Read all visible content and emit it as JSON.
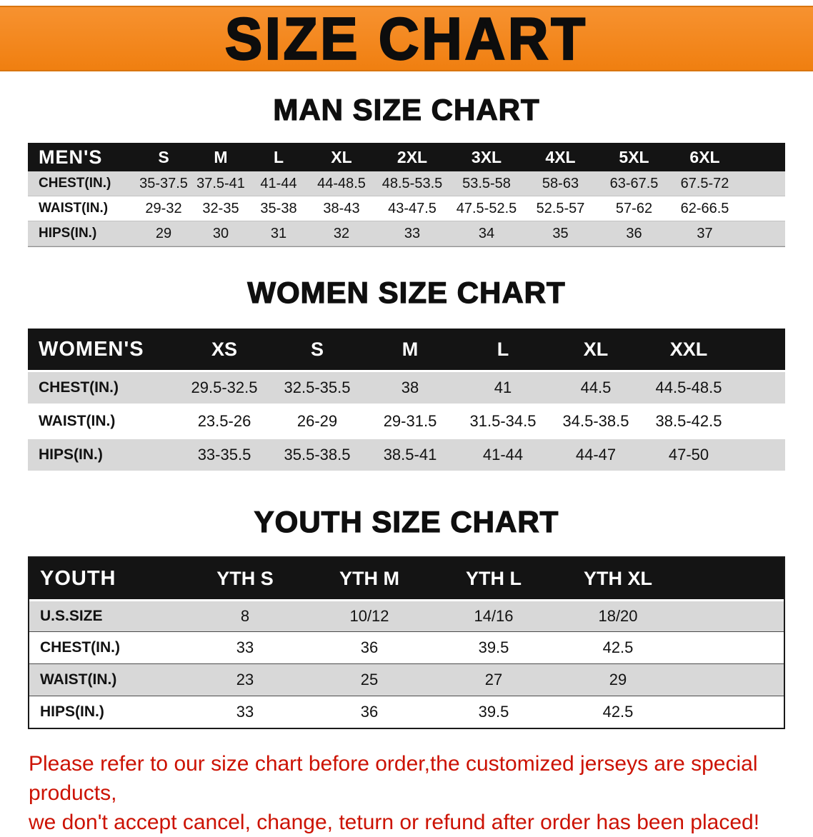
{
  "banner": {
    "title": "SIZE CHART"
  },
  "colors": {
    "banner_bg": "#f6871c",
    "table_header_bg": "#141414",
    "row_gray": "#d8d8d8",
    "note_red": "#cc1203"
  },
  "sections": [
    {
      "heading": "MAN SIZE CHART",
      "table": {
        "header": [
          "MEN'S",
          "S",
          "M",
          "L",
          "XL",
          "2XL",
          "3XL",
          "4XL",
          "5XL",
          "6XL"
        ],
        "rows": [
          {
            "label": "CHEST(IN.)",
            "values": [
              "35-37.5",
              "37.5-41",
              "41-44",
              "44-48.5",
              "48.5-53.5",
              "53.5-58",
              "58-63",
              "63-67.5",
              "67.5-72"
            ]
          },
          {
            "label": "WAIST(IN.)",
            "values": [
              "29-32",
              "32-35",
              "35-38",
              "38-43",
              "43-47.5",
              "47.5-52.5",
              "52.5-57",
              "57-62",
              "62-66.5"
            ]
          },
          {
            "label": "HIPS(IN.)",
            "values": [
              "29",
              "30",
              "31",
              "32",
              "33",
              "34",
              "35",
              "36",
              "37"
            ]
          }
        ]
      }
    },
    {
      "heading": "WOMEN SIZE CHART",
      "table": {
        "header": [
          "WOMEN'S",
          "XS",
          "S",
          "M",
          "L",
          "XL",
          "XXL"
        ],
        "rows": [
          {
            "label": "CHEST(IN.)",
            "values": [
              "29.5-32.5",
              "32.5-35.5",
              "38",
              "41",
              "44.5",
              "44.5-48.5"
            ]
          },
          {
            "label": "WAIST(IN.)",
            "values": [
              "23.5-26",
              "26-29",
              "29-31.5",
              "31.5-34.5",
              "34.5-38.5",
              "38.5-42.5"
            ]
          },
          {
            "label": "HIPS(IN.)",
            "values": [
              "33-35.5",
              "35.5-38.5",
              "38.5-41",
              "41-44",
              "44-47",
              "47-50"
            ]
          }
        ]
      }
    },
    {
      "heading": "YOUTH SIZE CHART",
      "table": {
        "header": [
          "YOUTH",
          "YTH S",
          "YTH M",
          "YTH L",
          "YTH XL"
        ],
        "rows": [
          {
            "label": "U.S.SIZE",
            "values": [
              "8",
              "10/12",
              "14/16",
              "18/20"
            ]
          },
          {
            "label": "CHEST(IN.)",
            "values": [
              "33",
              "36",
              "39.5",
              "42.5"
            ]
          },
          {
            "label": "WAIST(IN.)",
            "values": [
              "23",
              "25",
              "27",
              "29"
            ]
          },
          {
            "label": "HIPS(IN.)",
            "values": [
              "33",
              "36",
              "39.5",
              "42.5"
            ]
          }
        ]
      }
    }
  ],
  "note": {
    "line1": "Please refer to our size chart before order,the customized jerseys are special products,",
    "line2": "we don't accept cancel, change, teturn or refund after order has been placed!"
  }
}
